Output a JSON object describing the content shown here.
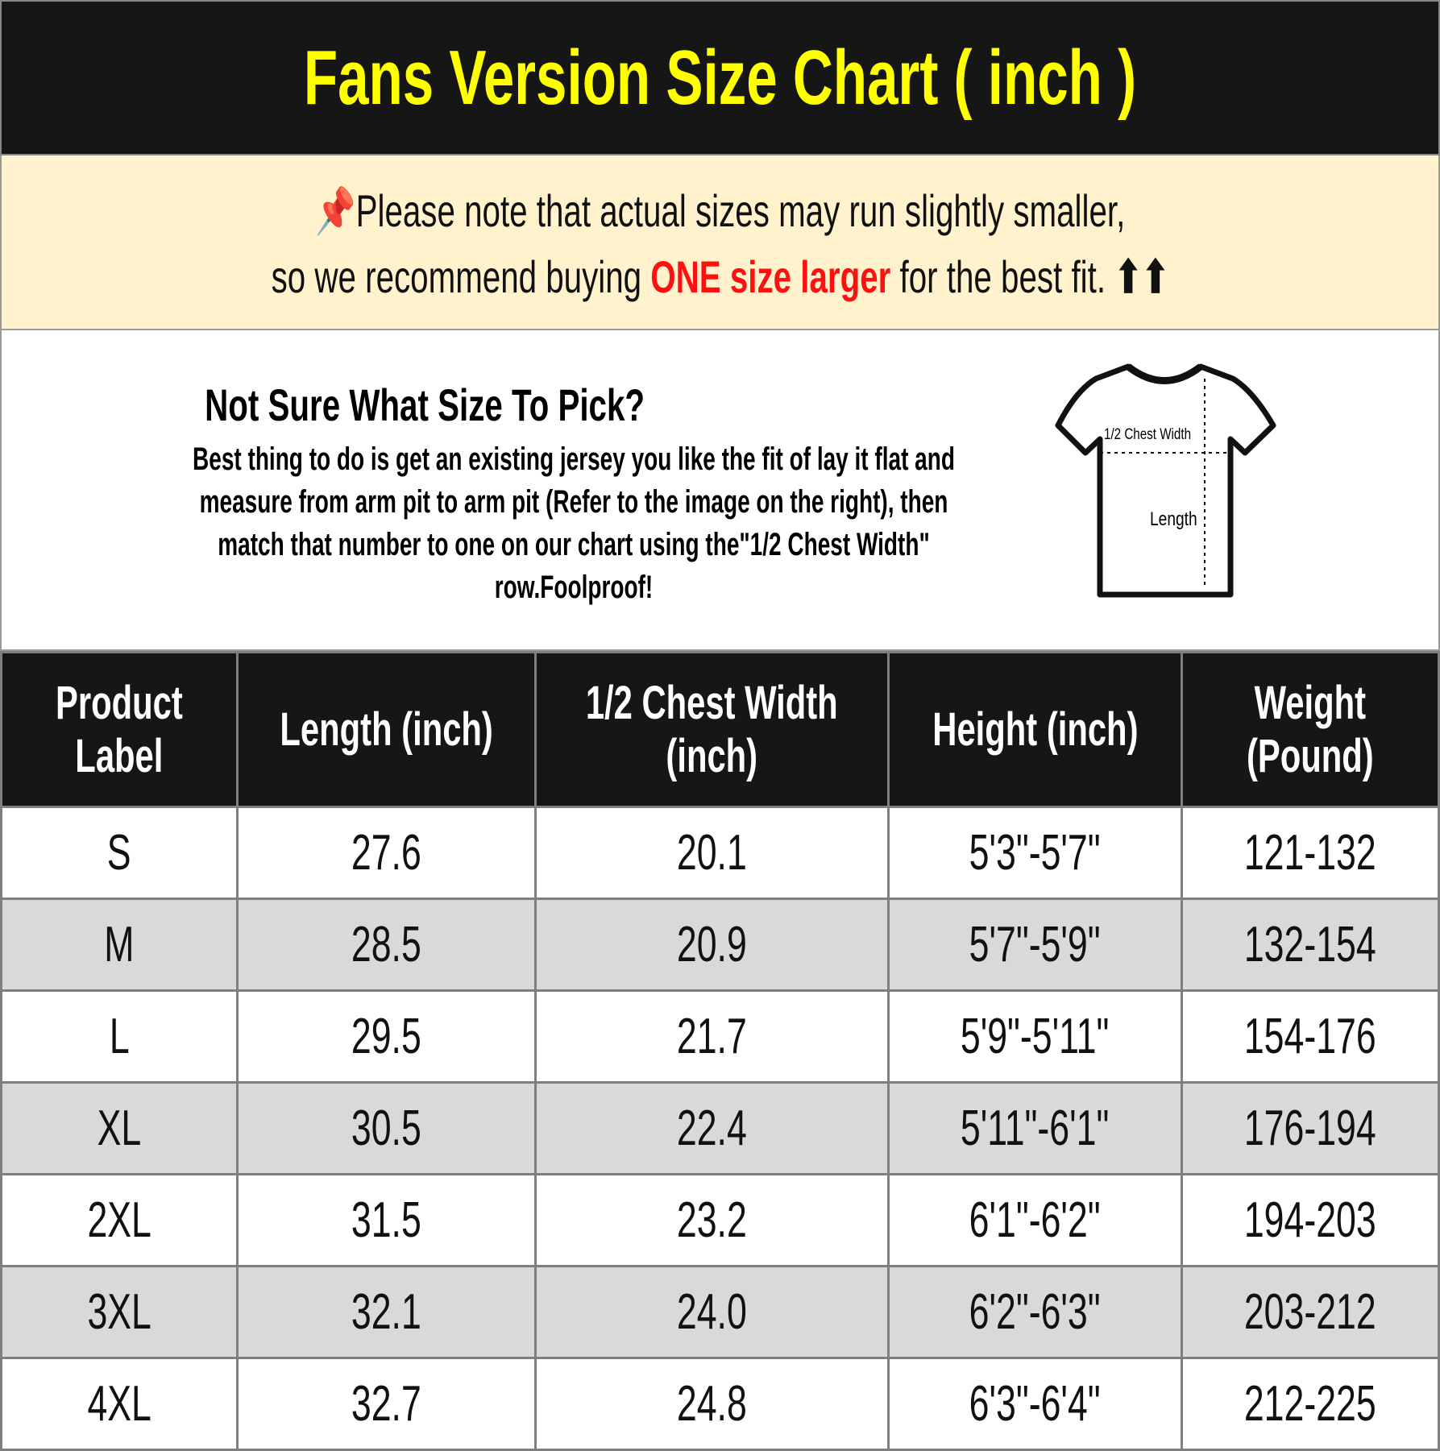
{
  "title": "Fans Version Size Chart ( inch )",
  "notice": {
    "pin_icon": "pushpin-icon",
    "line1": "Please note that actual sizes may run slightly smaller,",
    "line2_pre": "so we recommend buying ",
    "line2_highlight": "ONE size larger",
    "line2_post": " for the best fit.",
    "arrows": "⬆⬆",
    "highlight_color": "#ff1010"
  },
  "info": {
    "heading": "Not Sure What Size To Pick?",
    "body": "Best thing to do is get an existing jersey you like the fit of lay it flat and measure from arm pit to arm pit (Refer to the image on the right), then match that number to one on our chart using the\"1/2 Chest Width\" row.Foolproof!",
    "diagram": {
      "chest_label": "1/2 Chest Width",
      "length_label": "Length"
    }
  },
  "table": {
    "headers": [
      [
        "Product",
        "Label"
      ],
      [
        "Length (inch)"
      ],
      [
        "1/2 Chest Width",
        "(inch)"
      ],
      [
        "Height (inch)"
      ],
      [
        "Weight",
        "(Pound)"
      ]
    ],
    "rows": [
      [
        "S",
        "27.6",
        "20.1",
        "5'3\"-5'7\"",
        "121-132"
      ],
      [
        "M",
        "28.5",
        "20.9",
        "5'7\"-5'9\"",
        "132-154"
      ],
      [
        "L",
        "29.5",
        "21.7",
        "5'9\"-5'11\"",
        "154-176"
      ],
      [
        "XL",
        "30.5",
        "22.4",
        "5'11\"-6'1\"",
        "176-194"
      ],
      [
        "2XL",
        "31.5",
        "23.2",
        "6'1\"-6'2\"",
        "194-203"
      ],
      [
        "3XL",
        "32.1",
        "24.0",
        "6'2\"-6'3\"",
        "203-212"
      ],
      [
        "4XL",
        "32.7",
        "24.8",
        "6'3\"-6'4\"",
        "212-225"
      ]
    ]
  },
  "colors": {
    "title_bg": "#161616",
    "title_text": "#ffff00",
    "notice_bg": "#fff2cc",
    "alt_row": "#d9d9d9"
  }
}
